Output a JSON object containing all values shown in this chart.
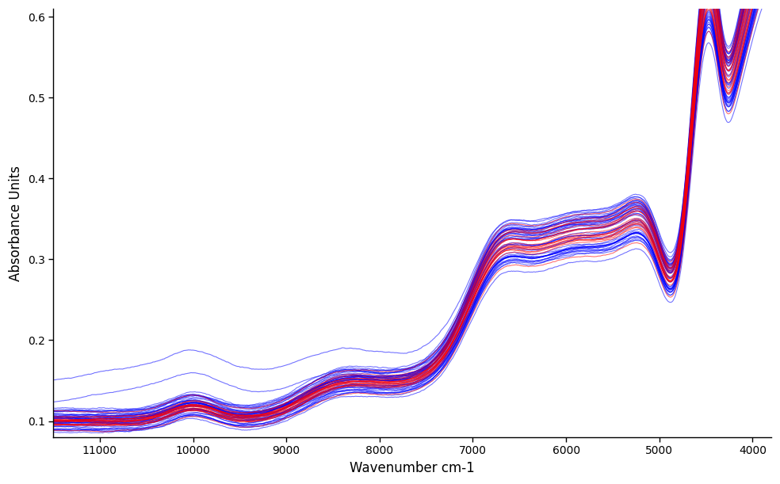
{
  "xlabel": "Wavenumber cm-1",
  "ylabel": "Absorbance Units",
  "xlim": [
    11500,
    3800
  ],
  "ylim": [
    0.08,
    0.61
  ],
  "yticks": [
    0.1,
    0.2,
    0.3,
    0.4,
    0.5,
    0.6
  ],
  "xticks": [
    11000,
    10000,
    9000,
    8000,
    7000,
    6000,
    5000,
    4000
  ],
  "background_color": "#ffffff",
  "blue_color": "#0000ff",
  "red_color": "#ff0000",
  "blue_alpha": 0.55,
  "red_alpha": 0.55,
  "line_width": 0.8,
  "n_blue": 45,
  "n_red": 18
}
